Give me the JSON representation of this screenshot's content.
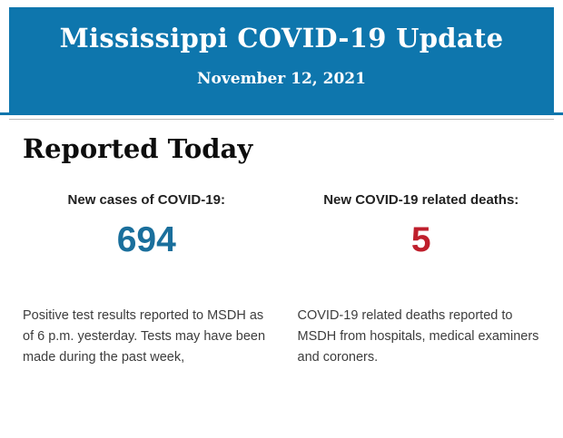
{
  "banner": {
    "title": "Mississippi COVID-19 Update",
    "date": "November 12, 2021",
    "background_color": "#0e76ad",
    "text_color": "#ffffff"
  },
  "section": {
    "heading": "Reported Today"
  },
  "stats": [
    {
      "label": "New cases of COVID-19:",
      "value": "694",
      "value_color": "#1a6f9c",
      "description": "Positive test results reported to MSDH as of 6 p.m. yesterday. Tests may have been made during the past week,"
    },
    {
      "label": "New COVID-19 related deaths:",
      "value": "5",
      "value_color": "#bf1f2c",
      "description": "COVID-19 related deaths reported to MSDH from hospitals, medical examiners and coroners."
    }
  ]
}
